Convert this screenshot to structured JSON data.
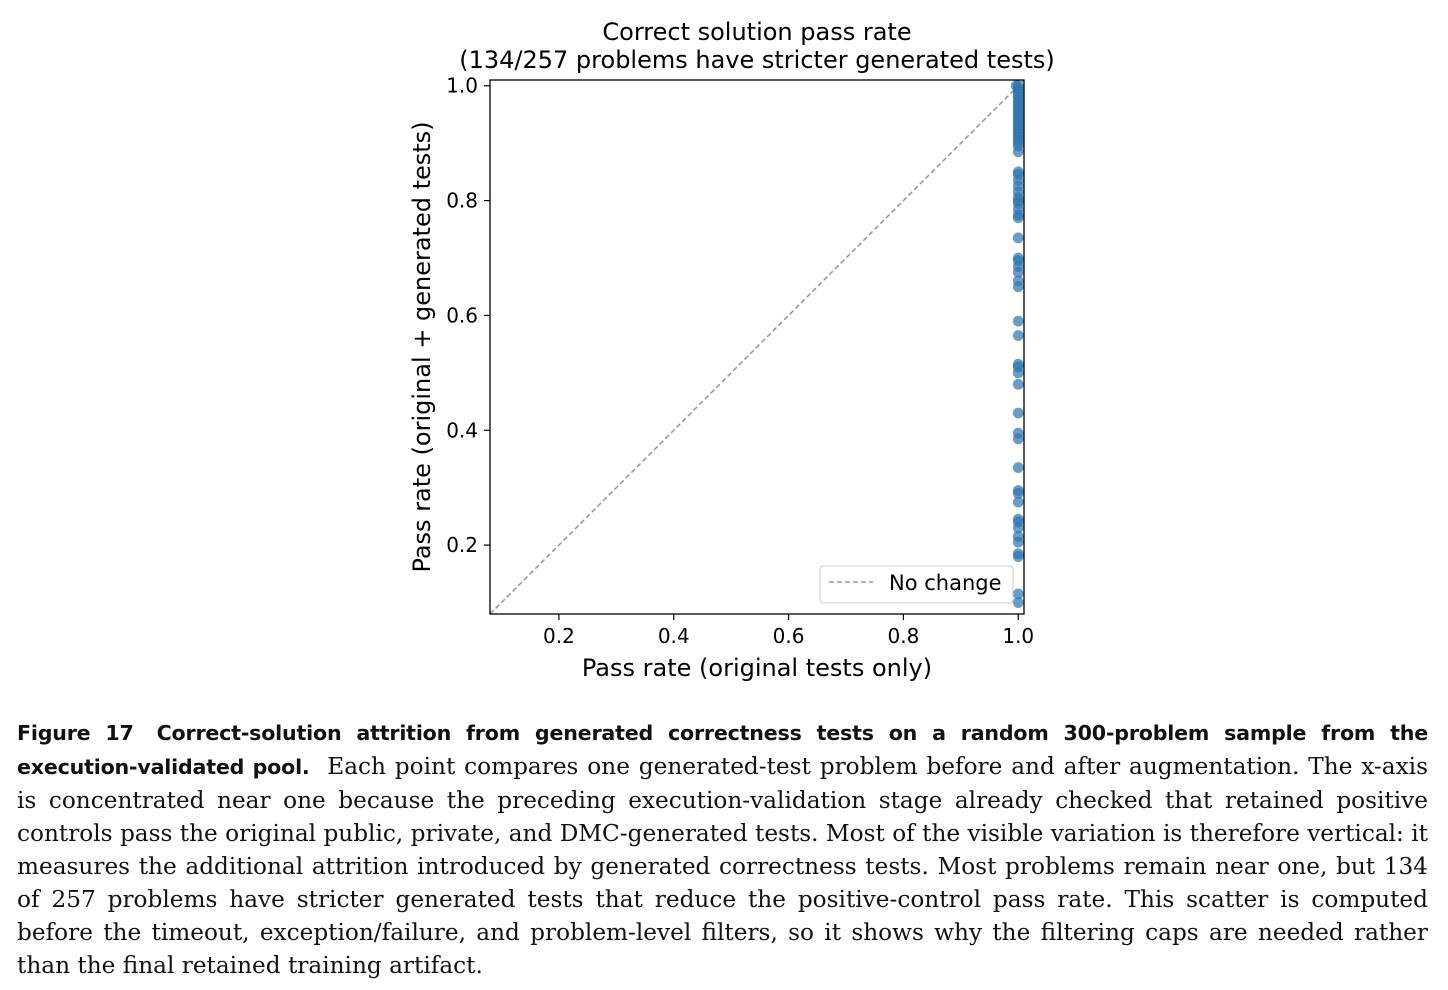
{
  "chart_data": {
    "type": "scatter",
    "title": "Correct solution pass rate",
    "subtitle": "(134/257 problems have stricter generated tests)",
    "xlabel": "Pass rate (original tests only)",
    "ylabel": "Pass rate (original + generated tests)",
    "xlim": [
      0.08,
      1.01
    ],
    "ylim": [
      0.08,
      1.01
    ],
    "xticks": [
      "0.2",
      "0.4",
      "0.6",
      "0.8",
      "1.0"
    ],
    "yticks": [
      "0.2",
      "0.4",
      "0.6",
      "0.8",
      "1.0"
    ],
    "grid": false,
    "legend_position": "lower-right",
    "legend": [
      "No change"
    ],
    "point_color": "#2f77b4",
    "reference_line_color": "#999999",
    "points": [
      {
        "x": 0.9965,
        "y": 1.0
      },
      {
        "x": 1.0,
        "y": 1.0
      },
      {
        "x": 1.0,
        "y": 0.995
      },
      {
        "x": 1.0,
        "y": 0.99
      },
      {
        "x": 1.0,
        "y": 0.985
      },
      {
        "x": 1.0,
        "y": 0.98
      },
      {
        "x": 1.0,
        "y": 0.975
      },
      {
        "x": 1.0,
        "y": 0.97
      },
      {
        "x": 1.0,
        "y": 0.965
      },
      {
        "x": 1.0,
        "y": 0.96
      },
      {
        "x": 1.0,
        "y": 0.955
      },
      {
        "x": 1.0,
        "y": 0.95
      },
      {
        "x": 1.0,
        "y": 0.945
      },
      {
        "x": 1.0,
        "y": 0.94
      },
      {
        "x": 1.0,
        "y": 0.935
      },
      {
        "x": 1.0,
        "y": 0.93
      },
      {
        "x": 1.0,
        "y": 0.925
      },
      {
        "x": 1.0,
        "y": 0.92
      },
      {
        "x": 1.0,
        "y": 0.915
      },
      {
        "x": 1.0,
        "y": 0.91
      },
      {
        "x": 1.0,
        "y": 0.905
      },
      {
        "x": 1.0,
        "y": 0.9
      },
      {
        "x": 1.0,
        "y": 0.895
      },
      {
        "x": 1.0,
        "y": 0.885
      },
      {
        "x": 1.0,
        "y": 0.85
      },
      {
        "x": 1.0,
        "y": 0.845
      },
      {
        "x": 1.0,
        "y": 0.835
      },
      {
        "x": 1.0,
        "y": 0.825
      },
      {
        "x": 1.0,
        "y": 0.815
      },
      {
        "x": 1.0,
        "y": 0.805
      },
      {
        "x": 1.0,
        "y": 0.8
      },
      {
        "x": 1.0,
        "y": 0.795
      },
      {
        "x": 1.0,
        "y": 0.785
      },
      {
        "x": 1.0,
        "y": 0.775
      },
      {
        "x": 1.0,
        "y": 0.77
      },
      {
        "x": 1.0,
        "y": 0.735
      },
      {
        "x": 1.0,
        "y": 0.7
      },
      {
        "x": 1.0,
        "y": 0.695
      },
      {
        "x": 1.0,
        "y": 0.685
      },
      {
        "x": 1.0,
        "y": 0.675
      },
      {
        "x": 1.0,
        "y": 0.66
      },
      {
        "x": 1.0,
        "y": 0.65
      },
      {
        "x": 1.0,
        "y": 0.59
      },
      {
        "x": 1.0,
        "y": 0.565
      },
      {
        "x": 1.0,
        "y": 0.515
      },
      {
        "x": 1.0,
        "y": 0.51
      },
      {
        "x": 1.0,
        "y": 0.5
      },
      {
        "x": 1.0,
        "y": 0.48
      },
      {
        "x": 1.0,
        "y": 0.43
      },
      {
        "x": 1.0,
        "y": 0.395
      },
      {
        "x": 1.0,
        "y": 0.385
      },
      {
        "x": 1.0,
        "y": 0.335
      },
      {
        "x": 1.0,
        "y": 0.295
      },
      {
        "x": 1.0,
        "y": 0.29
      },
      {
        "x": 1.0,
        "y": 0.275
      },
      {
        "x": 1.0,
        "y": 0.245
      },
      {
        "x": 1.0,
        "y": 0.24
      },
      {
        "x": 1.0,
        "y": 0.23
      },
      {
        "x": 1.0,
        "y": 0.215
      },
      {
        "x": 1.0,
        "y": 0.205
      },
      {
        "x": 1.0,
        "y": 0.185
      },
      {
        "x": 1.0,
        "y": 0.18
      },
      {
        "x": 1.0,
        "y": 0.115
      },
      {
        "x": 1.0,
        "y": 0.1
      }
    ]
  },
  "caption": {
    "figure_number": "Figure 17",
    "bold_title": "Correct-solution attrition from generated correctness tests on a random 300-problem sample from the execution-validated pool.",
    "body": "Each point compares one generated-test problem before and after augmentation. The x-axis is concentrated near one because the preceding execution-validation stage already checked that retained positive controls pass the original public, private, and DMC-generated tests. Most of the visible variation is therefore vertical: it measures the additional attrition introduced by generated correctness tests. Most problems remain near one, but 134 of 257 problems have stricter generated tests that reduce the positive-control pass rate. This scatter is computed before the timeout, exception/failure, and problem-level filters, so it shows why the filtering caps are needed rather than the final retained training artifact."
  }
}
